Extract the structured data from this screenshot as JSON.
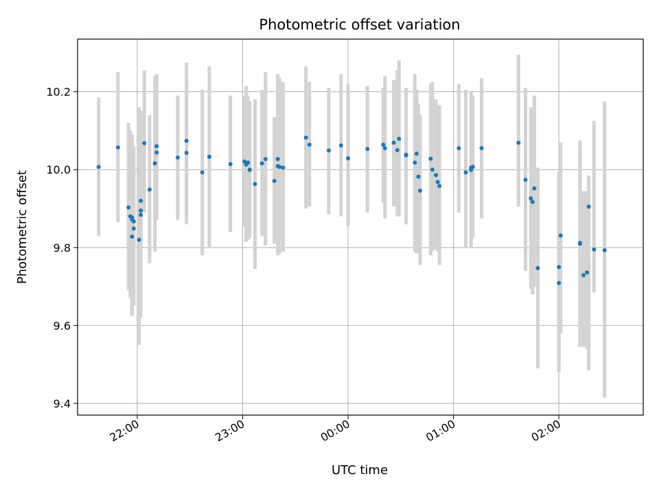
{
  "chart_data": {
    "type": "scatter",
    "title": "Photometric offset variation",
    "xlabel": "UTC time",
    "ylabel": "Photometric offset",
    "grid": true,
    "x_tick_labels": [
      "22:00",
      "23:00",
      "00:00",
      "01:00",
      "02:00"
    ],
    "x_tick_times": [
      "21:59:58",
      "22:59:58",
      "23:59:58",
      "00:59:58",
      "01:59:58"
    ],
    "y_tick_labels": [
      "9.4",
      "9.6",
      "9.8",
      "10.0",
      "10.2"
    ],
    "y_ticks": [
      9.4,
      9.6,
      9.8,
      10.0,
      10.2
    ],
    "x_range": [
      "21:26",
      "02:48"
    ],
    "y_range": [
      9.37,
      10.335
    ],
    "colors": {
      "point": "#1f77b4",
      "errorbar": "#d3d3d3",
      "grid": "#b0b0b0"
    },
    "series": [
      {
        "x": [
          "21:38",
          "21:49",
          "21:55",
          "21:56",
          "21:57",
          "21:57",
          "21:57",
          "21:58",
          "21:58",
          "22:01",
          "22:02",
          "22:02",
          "22:02",
          "22:04",
          "22:07",
          "22:10",
          "22:11",
          "22:11",
          "22:23",
          "22:28",
          "22:28",
          "22:37",
          "22:41",
          "22:53",
          "23:01",
          "23:02",
          "23:03",
          "23:04",
          "23:04",
          "23:07",
          "23:11",
          "23:13",
          "23:18",
          "23:20",
          "23:20",
          "23:21",
          "23:23",
          "23:36",
          "23:38",
          "23:49",
          "23:56",
          "24:00",
          "24:11",
          "24:20",
          "24:21",
          "24:26",
          "24:28",
          "24:29",
          "24:33",
          "24:33",
          "24:38",
          "24:39",
          "24:40",
          "24:41",
          "24:47",
          "24:48",
          "24:50",
          "24:51",
          "24:52",
          "25:03",
          "25:07",
          "25:10",
          "25:10",
          "25:11",
          "25:16",
          "25:37",
          "25:41",
          "25:44",
          "25:45",
          "25:46",
          "25:48",
          "26:00",
          "26:00",
          "26:01",
          "26:12",
          "26:12",
          "26:14",
          "26:16",
          "26:17",
          "26:20",
          "26:26"
        ],
        "y": [
          10.007,
          10.057,
          9.903,
          9.88,
          9.877,
          9.872,
          9.828,
          9.849,
          9.867,
          9.82,
          9.895,
          9.884,
          9.92,
          10.068,
          9.949,
          10.016,
          10.044,
          10.06,
          10.031,
          10.043,
          10.074,
          9.993,
          10.033,
          10.014,
          10.021,
          10.013,
          10.018,
          10.0,
          9.999,
          9.963,
          10.016,
          10.027,
          9.971,
          10.027,
          10.009,
          10.007,
          10.005,
          10.082,
          10.064,
          10.049,
          10.062,
          10.029,
          10.053,
          10.064,
          10.055,
          10.069,
          10.05,
          10.079,
          10.038,
          10.037,
          10.018,
          10.041,
          9.982,
          9.946,
          10.028,
          10.0,
          9.986,
          9.968,
          9.958,
          10.055,
          9.993,
          10.005,
          9.999,
          10.007,
          10.055,
          10.069,
          9.974,
          9.926,
          9.917,
          9.952,
          9.747,
          9.709,
          9.75,
          9.831,
          9.812,
          9.81,
          9.729,
          9.736,
          9.905,
          9.795,
          9.793
        ],
        "err_low": [
          9.83,
          9.865,
          9.69,
          9.67,
          9.665,
          9.625,
          9.63,
          9.65,
          9.68,
          9.55,
          9.62,
          9.65,
          9.7,
          9.89,
          9.76,
          9.79,
          9.87,
          9.87,
          9.87,
          9.86,
          9.875,
          9.78,
          9.8,
          9.84,
          9.855,
          9.815,
          9.82,
          9.825,
          9.825,
          9.745,
          9.83,
          9.805,
          9.81,
          9.8,
          9.78,
          9.785,
          9.79,
          9.9,
          9.905,
          9.885,
          9.88,
          9.855,
          9.89,
          9.915,
          9.875,
          9.905,
          9.88,
          9.88,
          9.86,
          9.86,
          9.79,
          9.785,
          9.79,
          9.755,
          9.78,
          9.79,
          9.795,
          9.79,
          9.755,
          9.89,
          9.8,
          9.8,
          9.8,
          9.825,
          9.875,
          9.905,
          9.74,
          9.695,
          9.68,
          9.7,
          9.49,
          9.48,
          9.51,
          9.58,
          9.59,
          9.545,
          9.545,
          9.54,
          9.485,
          9.685,
          9.415
        ],
        "err_high": [
          10.185,
          10.25,
          10.12,
          10.1,
          10.09,
          10.08,
          10.07,
          10.06,
          10.05,
          10.16,
          10.15,
          10.14,
          10.125,
          10.255,
          10.14,
          10.24,
          10.235,
          10.245,
          10.19,
          10.225,
          10.275,
          10.205,
          10.265,
          10.19,
          10.19,
          10.215,
          10.19,
          10.175,
          10.175,
          10.18,
          10.205,
          10.25,
          10.135,
          10.245,
          10.24,
          10.235,
          10.225,
          10.265,
          10.225,
          10.21,
          10.245,
          10.22,
          10.215,
          10.21,
          10.24,
          10.23,
          10.255,
          10.28,
          10.21,
          10.21,
          10.245,
          10.205,
          10.17,
          10.14,
          10.22,
          10.225,
          10.18,
          10.15,
          10.165,
          10.22,
          10.205,
          10.2,
          10.2,
          10.19,
          10.235,
          10.295,
          10.21,
          10.16,
          10.155,
          10.19,
          10.005,
          9.995,
          9.99,
          10.07,
          10.045,
          10.075,
          9.945,
          9.945,
          9.985,
          10.125,
          10.175
        ]
      }
    ]
  }
}
